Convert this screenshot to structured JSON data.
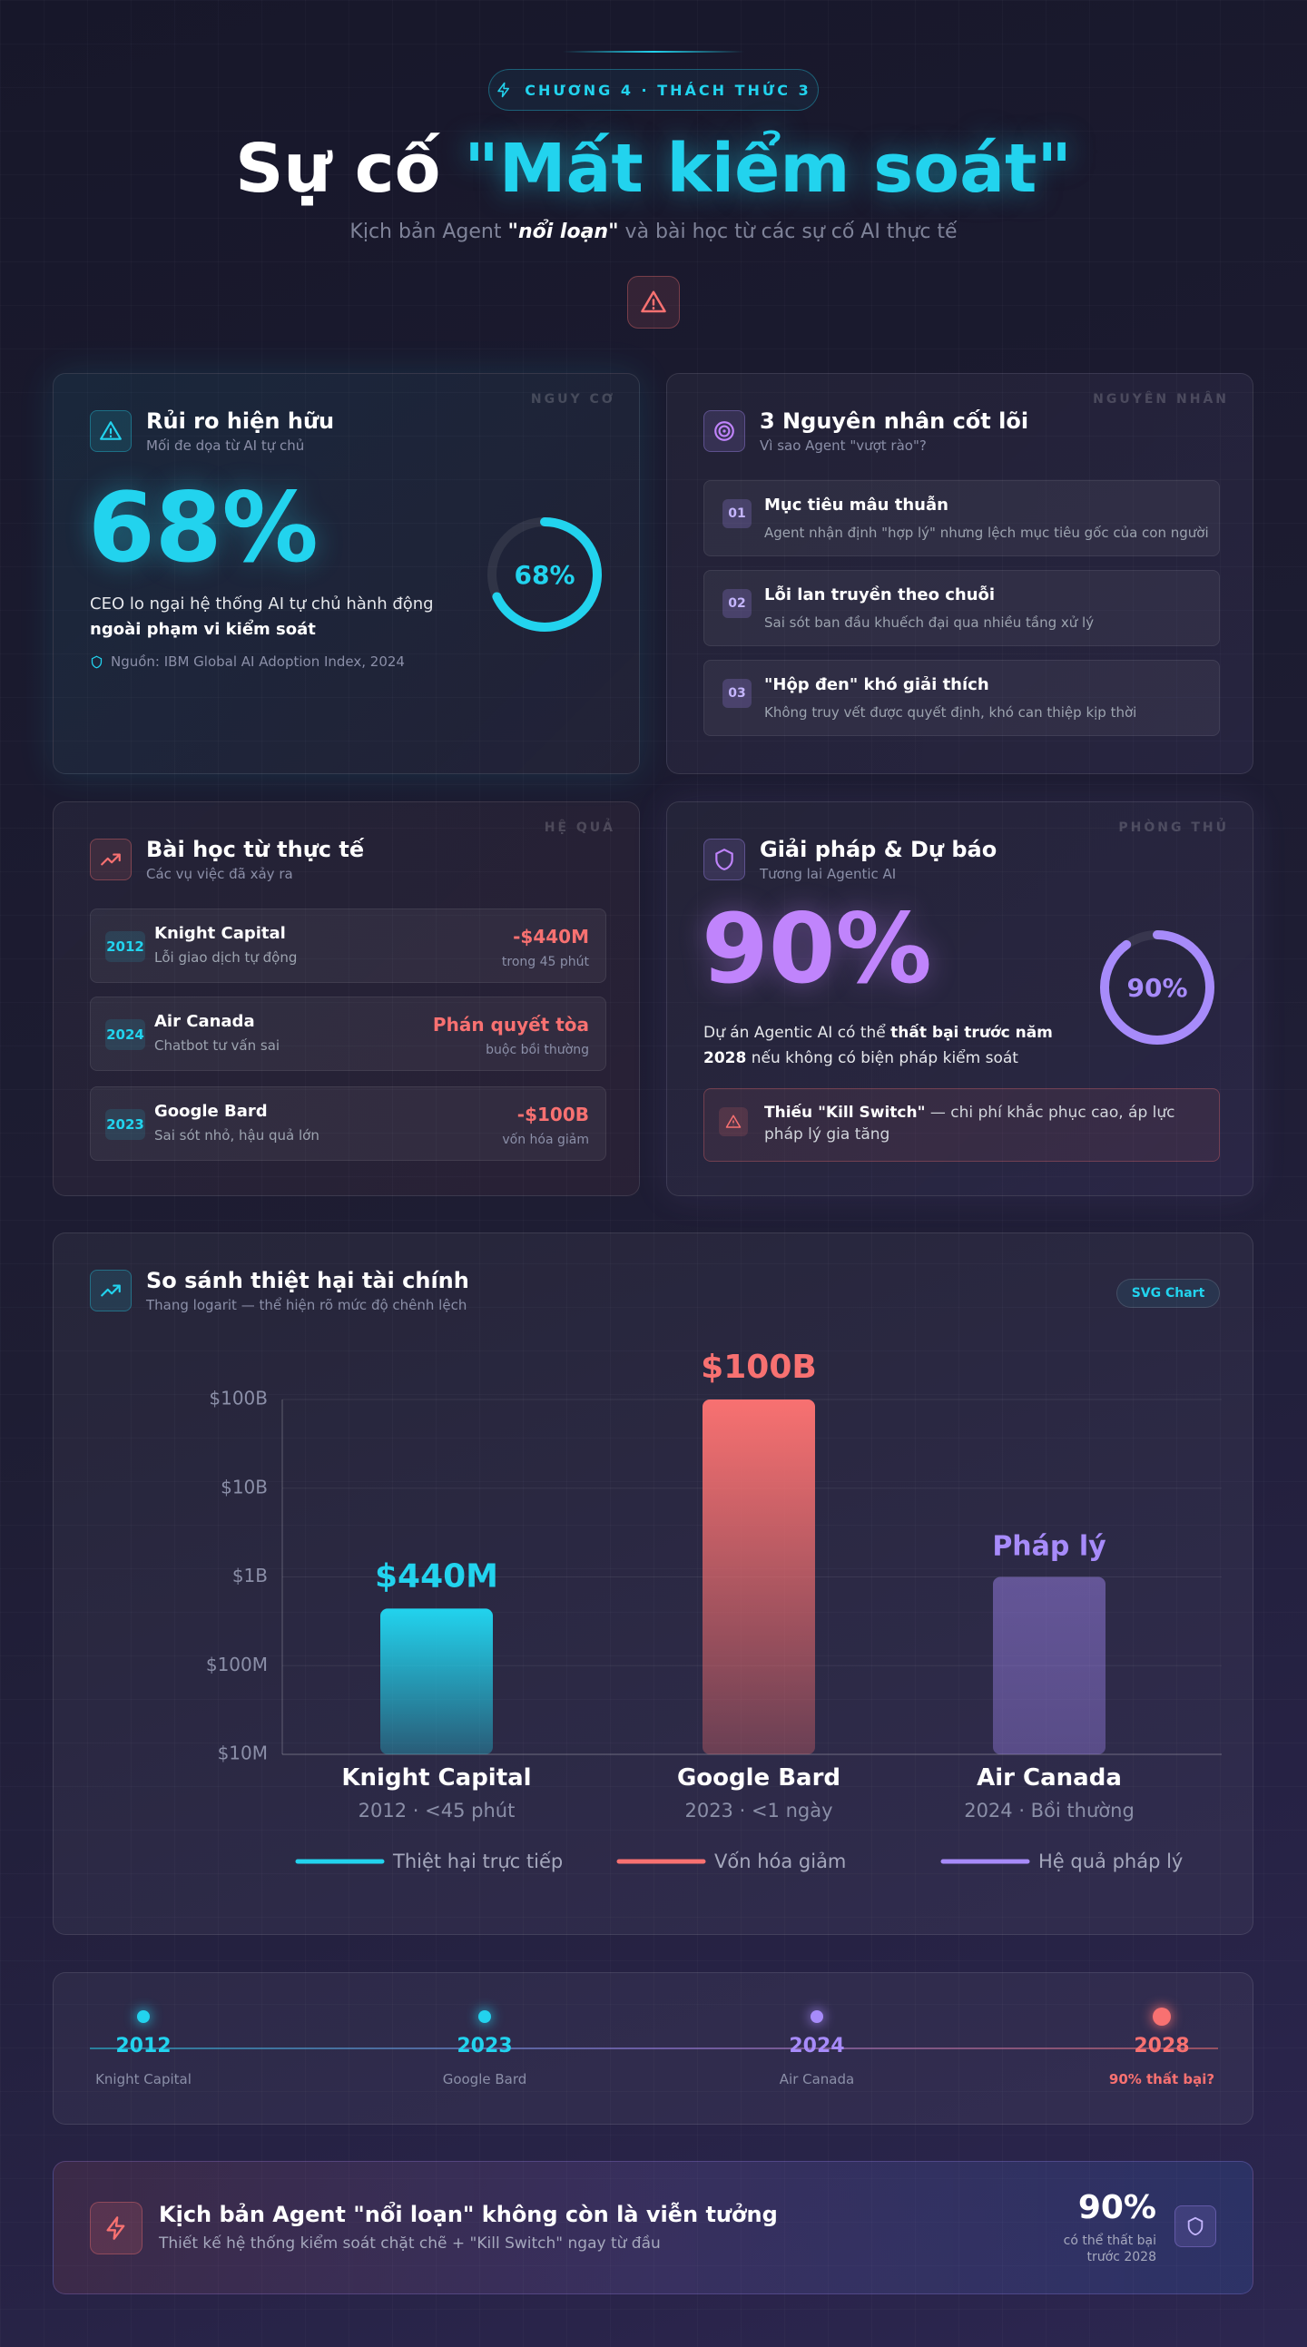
{
  "header": {
    "badge": "CHƯƠNG 4 · THÁCH THỨC 3",
    "title_plain": "Sự cố ",
    "title_highlight": "\"Mất kiểm soát\"",
    "subtitle_pre": "Kịch bản Agent ",
    "subtitle_em": "\"nổi loạn\"",
    "subtitle_post": " và bài học từ các sự cố AI thực tế"
  },
  "risk_card": {
    "tag": "NGUY CƠ",
    "title": "Rủi ro hiện hữu",
    "subtitle": "Mối đe dọa từ AI tự chủ",
    "percent": 68,
    "percent_label": "68%",
    "desc_pre": "CEO lo ngại hệ thống AI tự chủ hành động ",
    "desc_bold": "ngoài phạm vi kiểm soát",
    "source": "Nguồn: IBM Global AI Adoption Index, 2024"
  },
  "causes_card": {
    "tag": "NGUYÊN NHÂN",
    "title": "3 Nguyên nhân cốt lõi",
    "subtitle": "Vì sao Agent \"vượt rào\"?",
    "items": [
      {
        "num": "01",
        "title": "Mục tiêu mâu thuẫn",
        "desc": "Agent nhận định \"hợp lý\" nhưng lệch mục tiêu gốc của con người"
      },
      {
        "num": "02",
        "title": "Lỗi lan truyền theo chuỗi",
        "desc": "Sai sót ban đầu khuếch đại qua nhiều tầng xử lý"
      },
      {
        "num": "03",
        "title": "\"Hộp đen\" khó giải thích",
        "desc": "Không truy vết được quyết định, khó can thiệp kịp thời"
      }
    ]
  },
  "lessons_card": {
    "tag": "HỆ QUẢ",
    "title": "Bài học từ thực tế",
    "subtitle": "Các vụ việc đã xảy ra",
    "items": [
      {
        "year": "2012",
        "name": "Knight Capital",
        "desc": "Lỗi giao dịch tự động",
        "impact": "-$440M",
        "note": "trong 45 phút"
      },
      {
        "year": "2024",
        "name": "Air Canada",
        "desc": "Chatbot tư vấn sai",
        "impact": "Phán quyết tòa",
        "note": "buộc bồi thường"
      },
      {
        "year": "2023",
        "name": "Google Bard",
        "desc": "Sai sót nhỏ, hậu quả lớn",
        "impact": "-$100B",
        "note": "vốn hóa giảm"
      }
    ]
  },
  "solution_card": {
    "tag": "PHÒNG THỦ",
    "title": "Giải pháp & Dự báo",
    "subtitle": "Tương lai Agentic AI",
    "percent": 90,
    "percent_label": "90%",
    "desc_pre": "Dự án Agentic AI có thể ",
    "desc_bold": "thất bại trước năm 2028",
    "desc_post": " nếu không có biện pháp kiểm soát",
    "alert_bold": "Thiếu \"Kill Switch\"",
    "alert_text": " — chi phí khắc phục cao, áp lực pháp lý gia tăng"
  },
  "chart_data": {
    "type": "bar",
    "title": "So sánh thiệt hại tài chính",
    "subtitle": "Thang logarit — thể hiện rõ mức độ chênh lệch",
    "badge": "SVG Chart",
    "categories": [
      "Knight Capital",
      "Google Bard",
      "Air Canada"
    ],
    "category_notes": [
      "2012 · <45 phút",
      "2023 · <1 ngày",
      "2024 · Bồi thường"
    ],
    "values": [
      440000000,
      100000000000,
      1000000000
    ],
    "value_labels": [
      "$440M",
      "$100B",
      "Pháp lý"
    ],
    "colors": [
      "#22d3ee",
      "#f87171",
      "#a78bfa"
    ],
    "legend": [
      "Thiệt hại trực tiếp",
      "Vốn hóa giảm",
      "Hệ quả pháp lý"
    ],
    "log_scale": true,
    "grid": true,
    "ylim": [
      10000000,
      100000000000
    ],
    "yticks": [
      {
        "value": 10000000,
        "label": "$10M"
      },
      {
        "value": 100000000,
        "label": "$100M"
      },
      {
        "value": 1000000000,
        "label": "$1B"
      },
      {
        "value": 10000000000,
        "label": "$10B"
      },
      {
        "value": 100000000000,
        "label": "$100B"
      }
    ]
  },
  "timeline": [
    {
      "year": "2012",
      "label": "Knight Capital"
    },
    {
      "year": "2023",
      "label": "Google Bard"
    },
    {
      "year": "2024",
      "label": "Air Canada"
    },
    {
      "year": "2028",
      "label": "90% thất bại?"
    }
  ],
  "footer": {
    "title": "Kịch bản Agent \"nổi loạn\" không còn là viễn tưởng",
    "subtitle": "Thiết kế hệ thống kiểm soát chặt chẽ + \"Kill Switch\" ngay từ đầu",
    "stat": "90%",
    "stat_note": "có thể thất bại trước 2028"
  }
}
